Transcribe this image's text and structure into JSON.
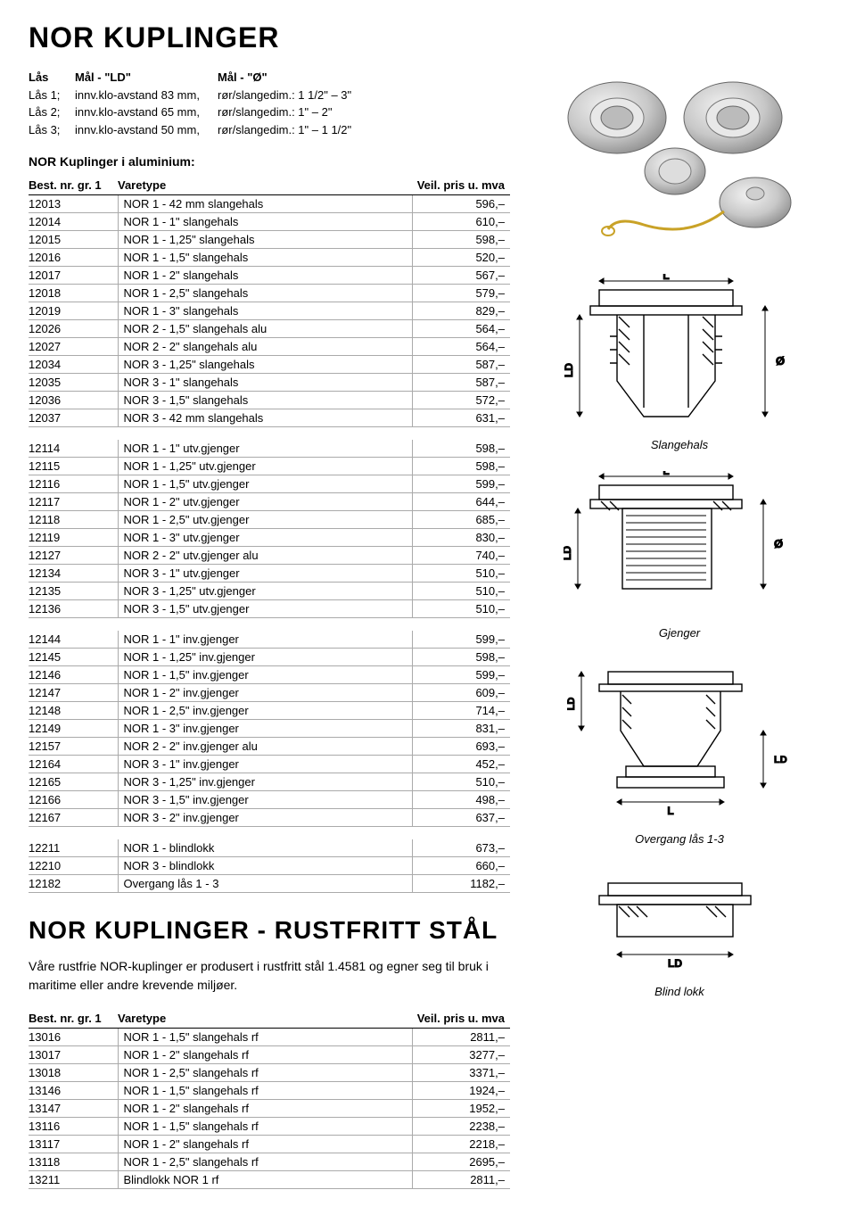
{
  "title": "NOR KUPLINGER",
  "specs": {
    "headers": [
      "Lås",
      "Mål - \"LD\"",
      "Mål - \"Ø\""
    ],
    "rows": [
      [
        "Lås 1;",
        "innv.klo-avstand 83 mm,",
        "rør/slangedim.: 1 1/2\" – 3\""
      ],
      [
        "Lås 2;",
        "innv.klo-avstand 65 mm,",
        "rør/slangedim.: 1\" – 2\""
      ],
      [
        "Lås 3;",
        "innv.klo-avstand 50 mm,",
        "rør/slangedim.: 1\" – 1 1/2\""
      ]
    ]
  },
  "sub1": "NOR Kuplinger i aluminium:",
  "table_headers": [
    "Best. nr. gr. 1",
    "Varetype",
    "Veil. pris u. mva"
  ],
  "group1": [
    [
      "12013",
      "NOR 1  - 42 mm slangehals",
      "596,–"
    ],
    [
      "12014",
      "NOR 1  - 1\" slangehals",
      "610,–"
    ],
    [
      "12015",
      "NOR 1  - 1,25\" slangehals",
      "598,–"
    ],
    [
      "12016",
      "NOR 1  - 1,5\" slangehals",
      "520,–"
    ],
    [
      "12017",
      "NOR 1  - 2\" slangehals",
      "567,–"
    ],
    [
      "12018",
      "NOR 1  - 2,5\" slangehals",
      "579,–"
    ],
    [
      "12019",
      "NOR 1  - 3\" slangehals",
      "829,–"
    ],
    [
      "12026",
      "NOR 2  - 1,5\" slangehals alu",
      "564,–"
    ],
    [
      "12027",
      "NOR 2  - 2\" slangehals alu",
      "564,–"
    ],
    [
      "12034",
      "NOR 3  - 1,25\" slangehals",
      "587,–"
    ],
    [
      "12035",
      "NOR 3  - 1\" slangehals",
      "587,–"
    ],
    [
      "12036",
      "NOR 3  - 1,5\" slangehals",
      "572,–"
    ],
    [
      "12037",
      "NOR 3  - 42 mm slangehals",
      "631,–"
    ]
  ],
  "group2": [
    [
      "12114",
      "NOR 1  -  1\"  utv.gjenger",
      "598,–"
    ],
    [
      "12115",
      "NOR 1  - 1,25\"  utv.gjenger",
      "598,–"
    ],
    [
      "12116",
      "NOR 1  - 1,5\"  utv.gjenger",
      "599,–"
    ],
    [
      "12117",
      "NOR 1  - 2\"  utv.gjenger",
      "644,–"
    ],
    [
      "12118",
      "NOR 1  - 2,5\"  utv.gjenger",
      "685,–"
    ],
    [
      "12119",
      "NOR 1  - 3\"  utv.gjenger",
      "830,–"
    ],
    [
      "12127",
      "NOR 2  - 2\"  utv.gjenger alu",
      "740,–"
    ],
    [
      "12134",
      "NOR 3  - 1\"  utv.gjenger",
      "510,–"
    ],
    [
      "12135",
      "NOR 3  - 1,25\"  utv.gjenger",
      "510,–"
    ],
    [
      "12136",
      "NOR 3  - 1,5\"  utv.gjenger",
      "510,–"
    ]
  ],
  "group3": [
    [
      "12144",
      "NOR 1  - 1\"  inv.gjenger",
      "599,–"
    ],
    [
      "12145",
      "NOR 1  - 1,25\"  inv.gjenger",
      "598,–"
    ],
    [
      "12146",
      "NOR 1  - 1,5\"  inv.gjenger",
      "599,–"
    ],
    [
      "12147",
      "NOR 1  - 2\"  inv.gjenger",
      "609,–"
    ],
    [
      "12148",
      "NOR 1  - 2,5\"  inv.gjenger",
      "714,–"
    ],
    [
      "12149",
      "NOR 1  - 3\"  inv.gjenger",
      "831,–"
    ],
    [
      "12157",
      "NOR 2  - 2\"  inv.gjenger alu",
      "693,–"
    ],
    [
      "12164",
      "NOR 3  - 1\"  inv.gjenger",
      "452,–"
    ],
    [
      "12165",
      "NOR 3  - 1,25\"  inv.gjenger",
      "510,–"
    ],
    [
      "12166",
      "NOR 3  - 1,5\"  inv.gjenger",
      "498,–"
    ],
    [
      "12167",
      "NOR 3  - 2\"  inv.gjenger",
      "637,–"
    ]
  ],
  "group4": [
    [
      "12211",
      "NOR 1 - blindlokk",
      "673,–"
    ],
    [
      "12210",
      "NOR 3 - blindlokk",
      "660,–"
    ],
    [
      "12182",
      "Overgang lås 1 - 3",
      "1182,–"
    ]
  ],
  "title2": "NOR KUPLINGER - RUSTFRITT STÅL",
  "intro2": "Våre rustfrie NOR-kuplinger er produsert i rustfritt stål 1.4581 og egner seg til bruk i maritime eller andre krevende miljøer.",
  "group5": [
    [
      "13016",
      "NOR 1  - 1,5\" slangehals rf",
      "2811,–"
    ],
    [
      "13017",
      "NOR 1  - 2\" slangehals rf",
      "3277,–"
    ],
    [
      "13018",
      "NOR 1  - 2,5\" slangehals rf",
      "3371,–"
    ],
    [
      "13146",
      "NOR 1  - 1,5\" slangehals rf",
      "1924,–"
    ],
    [
      "13147",
      "NOR 1  - 2\" slangehals rf",
      "1952,–"
    ],
    [
      "13116",
      "NOR 1  - 1,5\" slangehals rf",
      "2238,–"
    ],
    [
      "13117",
      "NOR 1  - 2\" slangehals rf",
      "2218,–"
    ],
    [
      "13118",
      "NOR 1  - 2,5\" slangehals rf",
      "2695,–"
    ],
    [
      "13211",
      "Blindlokk NOR 1  rf",
      "2811,–"
    ]
  ],
  "captions": {
    "slange": "Slangehals",
    "gjenger": "Gjenger",
    "overgang": "Overgang lås 1-3",
    "blind": "Blind lokk"
  },
  "dim_labels": {
    "L": "L",
    "LD": "LD",
    "O": "Ø"
  },
  "colors": {
    "text": "#000000",
    "line": "#000000",
    "grid": "#aaaaaa",
    "bg": "#ffffff",
    "metal_light": "#d9d9d9",
    "metal_mid": "#bfbfbf",
    "metal_dark": "#9e9e9e",
    "gold": "#c9a227"
  }
}
